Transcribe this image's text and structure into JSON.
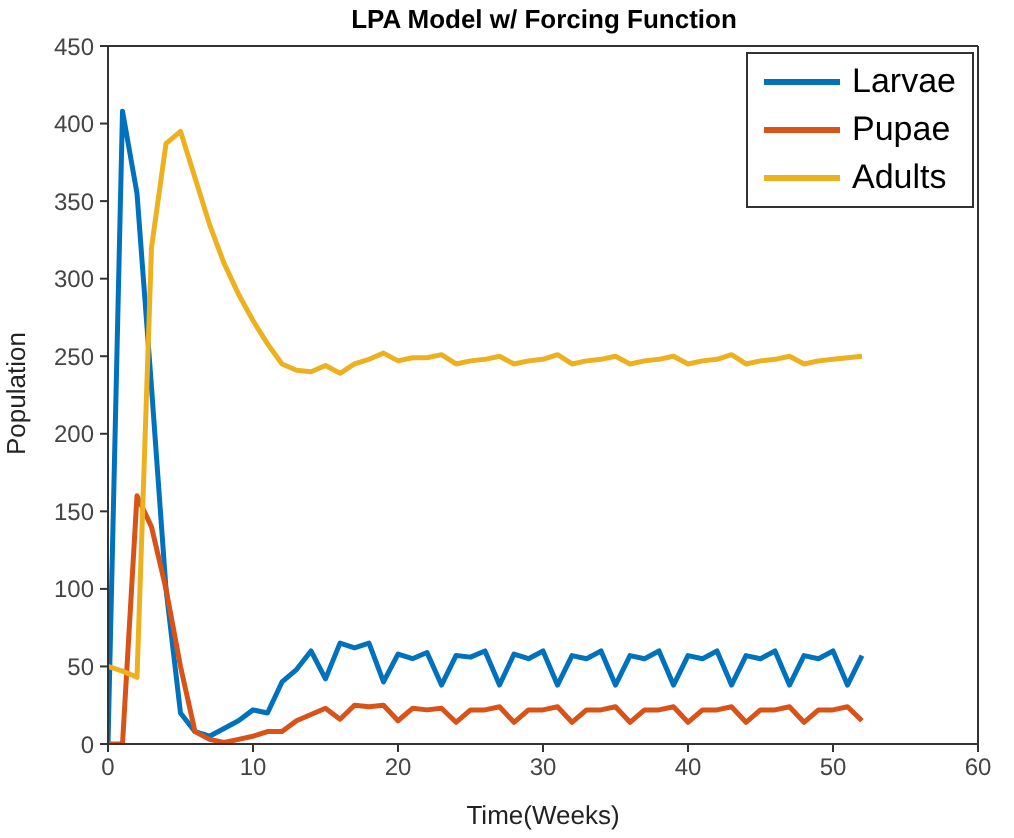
{
  "chart_data": {
    "type": "line",
    "title": "LPA Model w/ Forcing Function",
    "xlabel": "Time(Weeks)",
    "ylabel": "Population",
    "x": [
      0,
      1,
      2,
      3,
      4,
      5,
      6,
      7,
      8,
      9,
      10,
      11,
      12,
      13,
      14,
      15,
      16,
      17,
      18,
      19,
      20,
      21,
      22,
      23,
      24,
      25,
      26,
      27,
      28,
      29,
      30,
      31,
      32,
      33,
      34,
      35,
      36,
      37,
      38,
      39,
      40,
      41,
      42,
      43,
      44,
      45,
      46,
      47,
      48,
      49,
      50,
      51,
      52
    ],
    "series": [
      {
        "name": "Larvae",
        "color": "#0072bd",
        "values": [
          0,
          408,
          355,
          230,
          100,
          20,
          8,
          5,
          10,
          15,
          22,
          20,
          40,
          48,
          60,
          42,
          65,
          62,
          65,
          40,
          58,
          55,
          59,
          38,
          57,
          56,
          60,
          38,
          58,
          55,
          60,
          38,
          57,
          55,
          60,
          38,
          57,
          55,
          60,
          38,
          57,
          55,
          60,
          38,
          57,
          55,
          60,
          38,
          57,
          55,
          60,
          38,
          57
        ]
      },
      {
        "name": "Pupae",
        "color": "#d95319",
        "values": [
          0,
          0,
          160,
          140,
          100,
          50,
          8,
          3,
          1,
          3,
          5,
          8,
          8,
          15,
          19,
          23,
          16,
          25,
          24,
          25,
          15,
          23,
          22,
          23,
          14,
          22,
          22,
          24,
          14,
          22,
          22,
          24,
          14,
          22,
          22,
          24,
          14,
          22,
          22,
          24,
          14,
          22,
          22,
          24,
          14,
          22,
          22,
          24,
          14,
          22,
          22,
          24,
          15
        ]
      },
      {
        "name": "Adults",
        "color": "#edb120",
        "values": [
          50,
          47,
          43,
          320,
          387,
          395,
          365,
          335,
          310,
          290,
          273,
          258,
          245,
          241,
          240,
          244,
          239,
          245,
          248,
          252,
          247,
          249,
          249,
          251,
          245,
          247,
          248,
          250,
          245,
          247,
          248,
          251,
          245,
          247,
          248,
          250,
          245,
          247,
          248,
          250,
          245,
          247,
          248,
          251,
          245,
          247,
          248,
          250,
          245,
          247,
          248,
          249,
          250
        ]
      }
    ],
    "xlim": [
      0,
      60
    ],
    "xticks": [
      0,
      10,
      20,
      30,
      40,
      50,
      60
    ],
    "ylim": [
      0,
      450
    ],
    "yticks": [
      0,
      50,
      100,
      150,
      200,
      250,
      300,
      350,
      400,
      450
    ],
    "grid": false,
    "legend": "top right",
    "marker": "none",
    "line_style": "solid"
  }
}
